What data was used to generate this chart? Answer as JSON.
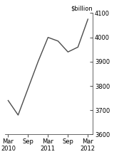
{
  "x": [
    0,
    1,
    2,
    3,
    4,
    5,
    6,
    7,
    8
  ],
  "y": [
    3740,
    3680,
    3790,
    3900,
    4000,
    3985,
    3940,
    3960,
    4075
  ],
  "x_tick_positions": [
    0,
    2,
    4,
    6,
    8
  ],
  "x_tick_labels": [
    "Mar\n2010",
    "Sep",
    "Mar\n2011",
    "Sep",
    "Mar\n2012"
  ],
  "y_label": "$billion",
  "ylim": [
    3600,
    4100
  ],
  "yticks": [
    3600,
    3700,
    3800,
    3900,
    4000,
    4100
  ],
  "line_color": "#4c4c4c",
  "background_color": "#ffffff",
  "line_width": 1.0
}
